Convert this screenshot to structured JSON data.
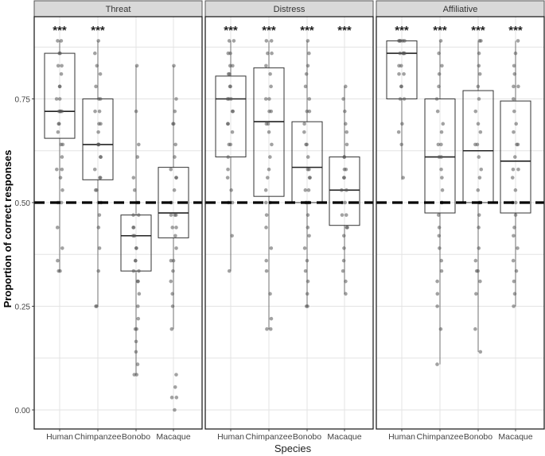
{
  "chart_data": {
    "type": "box",
    "xlabel": "Species",
    "ylabel": "Proportion of correct responses",
    "ylim": [
      0,
      1
    ],
    "yticks": [
      0.0,
      0.25,
      0.5,
      0.75
    ],
    "ytick_labels": [
      "0.00",
      "0.25",
      "0.50",
      "0.75"
    ],
    "reference_line": {
      "y": 0.5,
      "style": "dashed"
    },
    "significance_label": "***",
    "categories": [
      "Human",
      "Chimpanzee",
      "Bonobo",
      "Macaque"
    ],
    "grid": true,
    "facets": [
      {
        "title": "Threat",
        "groups": [
          {
            "category": "Human",
            "q1": 0.655,
            "median": 0.72,
            "q3": 0.86,
            "whisker_low": 0.335,
            "whisker_high": 0.89,
            "sig": true,
            "points": [
              0.89,
              0.89,
              0.86,
              0.86,
              0.83,
              0.83,
              0.81,
              0.78,
              0.78,
              0.75,
              0.75,
              0.72,
              0.72,
              0.72,
              0.72,
              0.69,
              0.69,
              0.67,
              0.64,
              0.64,
              0.61,
              0.58,
              0.58,
              0.56,
              0.53,
              0.5,
              0.5,
              0.44,
              0.39,
              0.36,
              0.335,
              0.335
            ]
          },
          {
            "category": "Chimpanzee",
            "q1": 0.555,
            "median": 0.64,
            "q3": 0.75,
            "whisker_low": 0.25,
            "whisker_high": 0.89,
            "sig": true,
            "points": [
              0.89,
              0.86,
              0.83,
              0.81,
              0.78,
              0.75,
              0.75,
              0.72,
              0.72,
              0.69,
              0.69,
              0.67,
              0.64,
              0.64,
              0.64,
              0.61,
              0.61,
              0.58,
              0.56,
              0.56,
              0.53,
              0.53,
              0.5,
              0.5,
              0.47,
              0.44,
              0.39,
              0.335,
              0.25,
              0.25
            ]
          },
          {
            "category": "Bonobo",
            "q1": 0.335,
            "median": 0.42,
            "q3": 0.47,
            "whisker_low": 0.085,
            "whisker_high": 0.83,
            "sig": false,
            "points": [
              0.83,
              0.72,
              0.64,
              0.61,
              0.56,
              0.53,
              0.5,
              0.5,
              0.47,
              0.47,
              0.44,
              0.44,
              0.42,
              0.42,
              0.39,
              0.39,
              0.36,
              0.36,
              0.335,
              0.335,
              0.31,
              0.31,
              0.28,
              0.25,
              0.22,
              0.195,
              0.195,
              0.165,
              0.14,
              0.11,
              0.085,
              0.085
            ]
          },
          {
            "category": "Macaque",
            "q1": 0.415,
            "median": 0.475,
            "q3": 0.585,
            "whisker_low": 0.195,
            "whisker_high": 0.83,
            "sig": false,
            "points": [
              0.83,
              0.75,
              0.72,
              0.69,
              0.69,
              0.64,
              0.61,
              0.58,
              0.56,
              0.56,
              0.53,
              0.5,
              0.5,
              0.47,
              0.47,
              0.47,
              0.44,
              0.44,
              0.42,
              0.39,
              0.36,
              0.36,
              0.335,
              0.31,
              0.28,
              0.25,
              0.195,
              0.085,
              0.055,
              0.03,
              0.03,
              0.0
            ]
          }
        ]
      },
      {
        "title": "Distress",
        "groups": [
          {
            "category": "Human",
            "q1": 0.61,
            "median": 0.75,
            "q3": 0.805,
            "whisker_low": 0.335,
            "whisker_high": 0.89,
            "sig": true,
            "points": [
              0.89,
              0.89,
              0.86,
              0.86,
              0.83,
              0.83,
              0.81,
              0.81,
              0.78,
              0.78,
              0.75,
              0.75,
              0.75,
              0.72,
              0.72,
              0.69,
              0.69,
              0.67,
              0.64,
              0.64,
              0.61,
              0.58,
              0.56,
              0.53,
              0.5,
              0.5,
              0.42,
              0.335
            ]
          },
          {
            "category": "Chimpanzee",
            "q1": 0.515,
            "median": 0.695,
            "q3": 0.825,
            "whisker_low": 0.195,
            "whisker_high": 0.89,
            "sig": true,
            "points": [
              0.89,
              0.89,
              0.86,
              0.86,
              0.83,
              0.81,
              0.78,
              0.75,
              0.75,
              0.72,
              0.72,
              0.69,
              0.69,
              0.67,
              0.64,
              0.61,
              0.58,
              0.56,
              0.53,
              0.5,
              0.5,
              0.47,
              0.44,
              0.39,
              0.36,
              0.335,
              0.28,
              0.22,
              0.195,
              0.195
            ]
          },
          {
            "category": "Bonobo",
            "q1": 0.5,
            "median": 0.585,
            "q3": 0.695,
            "whisker_low": 0.25,
            "whisker_high": 0.89,
            "sig": true,
            "points": [
              0.89,
              0.86,
              0.83,
              0.81,
              0.78,
              0.75,
              0.72,
              0.72,
              0.69,
              0.67,
              0.64,
              0.64,
              0.61,
              0.58,
              0.58,
              0.56,
              0.56,
              0.53,
              0.53,
              0.5,
              0.5,
              0.47,
              0.44,
              0.42,
              0.39,
              0.36,
              0.335,
              0.31,
              0.28,
              0.25,
              0.25
            ]
          },
          {
            "category": "Macaque",
            "q1": 0.445,
            "median": 0.53,
            "q3": 0.61,
            "whisker_low": 0.28,
            "whisker_high": 0.78,
            "sig": true,
            "points": [
              0.78,
              0.75,
              0.72,
              0.69,
              0.67,
              0.64,
              0.61,
              0.61,
              0.58,
              0.58,
              0.56,
              0.56,
              0.53,
              0.53,
              0.5,
              0.5,
              0.47,
              0.47,
              0.44,
              0.44,
              0.42,
              0.39,
              0.36,
              0.335,
              0.31,
              0.28
            ]
          }
        ]
      },
      {
        "title": "Affiliative",
        "groups": [
          {
            "category": "Human",
            "q1": 0.75,
            "median": 0.86,
            "q3": 0.89,
            "whisker_low": 0.555,
            "whisker_high": 0.89,
            "sig": true,
            "points": [
              0.89,
              0.89,
              0.89,
              0.89,
              0.89,
              0.86,
              0.86,
              0.86,
              0.86,
              0.83,
              0.83,
              0.81,
              0.81,
              0.78,
              0.78,
              0.75,
              0.75,
              0.69,
              0.67,
              0.64,
              0.56
            ]
          },
          {
            "category": "Chimpanzee",
            "q1": 0.475,
            "median": 0.61,
            "q3": 0.75,
            "whisker_low": 0.11,
            "whisker_high": 0.89,
            "sig": true,
            "points": [
              0.89,
              0.86,
              0.83,
              0.81,
              0.78,
              0.75,
              0.72,
              0.69,
              0.67,
              0.64,
              0.64,
              0.61,
              0.61,
              0.58,
              0.56,
              0.53,
              0.5,
              0.5,
              0.47,
              0.44,
              0.42,
              0.39,
              0.36,
              0.335,
              0.31,
              0.28,
              0.25,
              0.195,
              0.11
            ]
          },
          {
            "category": "Bonobo",
            "q1": 0.5,
            "median": 0.625,
            "q3": 0.77,
            "whisker_low": 0.14,
            "whisker_high": 0.89,
            "sig": true,
            "points": [
              0.89,
              0.89,
              0.86,
              0.83,
              0.81,
              0.78,
              0.75,
              0.72,
              0.69,
              0.67,
              0.64,
              0.64,
              0.61,
              0.58,
              0.56,
              0.53,
              0.5,
              0.5,
              0.47,
              0.44,
              0.39,
              0.36,
              0.335,
              0.335,
              0.31,
              0.28,
              0.195,
              0.14
            ]
          },
          {
            "category": "Macaque",
            "q1": 0.475,
            "median": 0.6,
            "q3": 0.745,
            "whisker_low": 0.25,
            "whisker_high": 0.89,
            "sig": true,
            "points": [
              0.89,
              0.86,
              0.83,
              0.81,
              0.78,
              0.78,
              0.75,
              0.72,
              0.69,
              0.67,
              0.64,
              0.64,
              0.61,
              0.58,
              0.58,
              0.56,
              0.53,
              0.5,
              0.5,
              0.47,
              0.44,
              0.42,
              0.39,
              0.36,
              0.335,
              0.31,
              0.28,
              0.25
            ]
          }
        ]
      }
    ]
  }
}
